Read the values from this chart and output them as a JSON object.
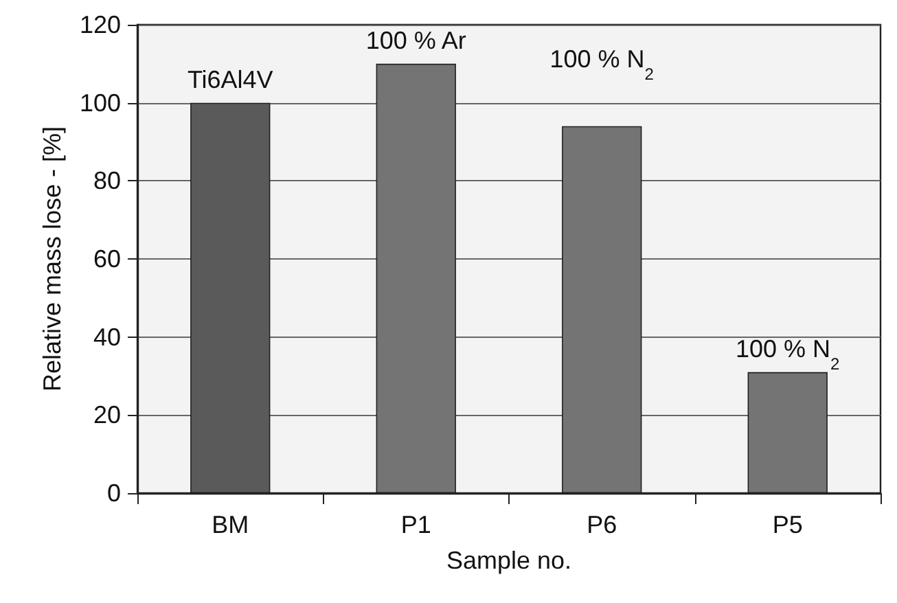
{
  "chart_data": {
    "type": "bar",
    "xlabel": "Sample no.",
    "ylabel": "Relative mass lose - [%]",
    "categories": [
      "BM",
      "P1",
      "P6",
      "P5"
    ],
    "values": [
      100,
      110,
      94,
      31
    ],
    "colors": [
      "#5a5a5a",
      "#747474",
      "#747474",
      "#747474"
    ],
    "ylim": [
      0,
      120
    ],
    "yticks": [
      0,
      20,
      40,
      60,
      80,
      100,
      120
    ],
    "grid": "y",
    "annotations": [
      "Ti6Al4V",
      "100 % Ar",
      "100 % N$_{2}$",
      "100 % N$_{2}$"
    ]
  }
}
